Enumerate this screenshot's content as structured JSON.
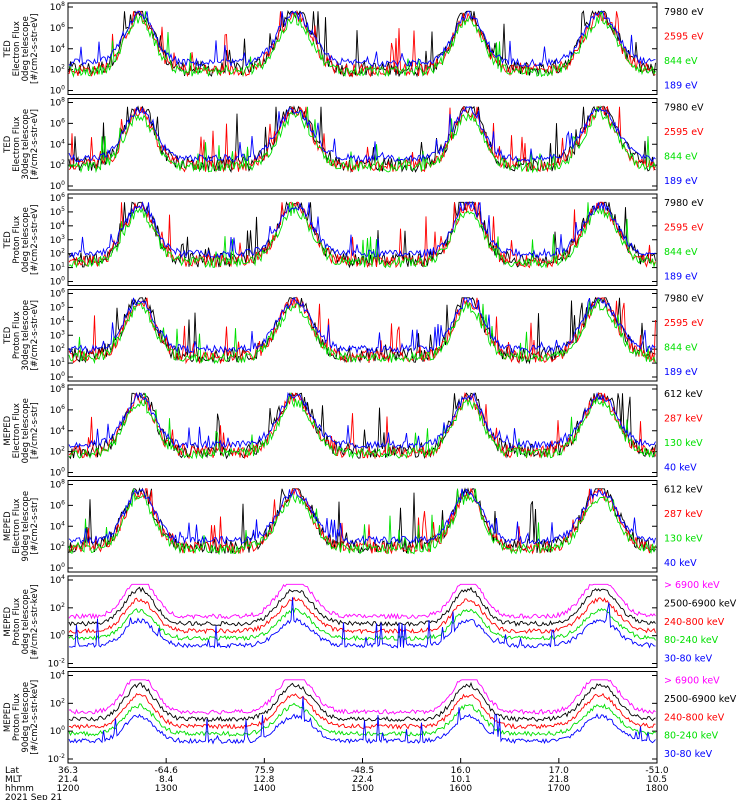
{
  "figure": {
    "date_label": "2021 Sep 21",
    "footer_row_labels": [
      "Lat",
      "MLT",
      "hhmm"
    ]
  },
  "chart_data": [
    {
      "type": "line",
      "ylabel": [
        "TED",
        "Electron Flux",
        "0deg telescope",
        "[#/cm2-s-str-eV]"
      ],
      "y_scale": "log",
      "yticks": [
        "10^8",
        "10^6",
        "10^4",
        "10^2",
        "10^0"
      ],
      "ylim": [
        1,
        100000000
      ],
      "series": [
        {
          "name": "7980 eV",
          "color": "#000000"
        },
        {
          "name": "2595 eV",
          "color": "#ff0000"
        },
        {
          "name": "844 eV",
          "color": "#00e000"
        },
        {
          "name": "189 eV",
          "color": "#0000ff"
        }
      ],
      "x_range": [
        "1200",
        "1800"
      ]
    },
    {
      "type": "line",
      "ylabel": [
        "TED",
        "Electron Flux",
        "30deg telescope",
        "[#/cm2-s-str-eV]"
      ],
      "y_scale": "log",
      "yticks": [
        "10^8",
        "10^6",
        "10^4",
        "10^2",
        "10^0"
      ],
      "ylim": [
        1,
        100000000
      ],
      "series": [
        {
          "name": "7980 eV",
          "color": "#000000"
        },
        {
          "name": "2595 eV",
          "color": "#ff0000"
        },
        {
          "name": "844 eV",
          "color": "#00e000"
        },
        {
          "name": "189 eV",
          "color": "#0000ff"
        }
      ],
      "x_range": [
        "1200",
        "1800"
      ]
    },
    {
      "type": "line",
      "ylabel": [
        "TED",
        "Proton Flux",
        "0deg telescope",
        "[#/cm2-s-str-eV]"
      ],
      "y_scale": "log",
      "yticks": [
        "10^6",
        "10^5",
        "10^4",
        "10^3",
        "10^2",
        "10^1",
        "10^0"
      ],
      "ylim": [
        1,
        1000000
      ],
      "series": [
        {
          "name": "7980 eV",
          "color": "#000000"
        },
        {
          "name": "2595 eV",
          "color": "#ff0000"
        },
        {
          "name": "844 eV",
          "color": "#00e000"
        },
        {
          "name": "189 eV",
          "color": "#0000ff"
        }
      ],
      "x_range": [
        "1200",
        "1800"
      ]
    },
    {
      "type": "line",
      "ylabel": [
        "TED",
        "Proton Flux",
        "30deg telescope",
        "[#/cm2-s-str-eV]"
      ],
      "y_scale": "log",
      "yticks": [
        "10^6",
        "10^5",
        "10^4",
        "10^3",
        "10^2",
        "10^1",
        "10^0"
      ],
      "ylim": [
        1,
        1000000
      ],
      "series": [
        {
          "name": "7980 eV",
          "color": "#000000"
        },
        {
          "name": "2595 eV",
          "color": "#ff0000"
        },
        {
          "name": "844 eV",
          "color": "#00e000"
        },
        {
          "name": "189 eV",
          "color": "#0000ff"
        }
      ],
      "x_range": [
        "1200",
        "1800"
      ]
    },
    {
      "type": "line",
      "ylabel": [
        "MEPED",
        "Electron Flux",
        "0deg telescope",
        "[#/cm2-s-str]"
      ],
      "y_scale": "log",
      "yticks": [
        "10^8",
        "10^6",
        "10^4",
        "10^2",
        "10^0"
      ],
      "ylim": [
        1,
        100000000
      ],
      "series": [
        {
          "name": "612 keV",
          "color": "#000000"
        },
        {
          "name": "287 keV",
          "color": "#ff0000"
        },
        {
          "name": "130 keV",
          "color": "#00e000"
        },
        {
          "name": "40 keV",
          "color": "#0000ff"
        }
      ],
      "x_range": [
        "1200",
        "1800"
      ]
    },
    {
      "type": "line",
      "ylabel": [
        "MEPED",
        "Electron Flux",
        "90deg telescope",
        "[#/cm2-s-str]"
      ],
      "y_scale": "log",
      "yticks": [
        "10^8",
        "10^6",
        "10^4",
        "10^2",
        "10^0"
      ],
      "ylim": [
        1,
        100000000
      ],
      "series": [
        {
          "name": "612 keV",
          "color": "#000000"
        },
        {
          "name": "287 keV",
          "color": "#ff0000"
        },
        {
          "name": "130 keV",
          "color": "#00e000"
        },
        {
          "name": "40 keV",
          "color": "#0000ff"
        }
      ],
      "x_range": [
        "1200",
        "1800"
      ]
    },
    {
      "type": "line",
      "ylabel": [
        "MEPED",
        "Proton Flux",
        "0deg telescope",
        "[#/cm2-s-str-keV]"
      ],
      "y_scale": "log",
      "yticks": [
        "10^4",
        "10^2",
        "10^0",
        "10^-2"
      ],
      "ylim": [
        0.01,
        100000
      ],
      "series": [
        {
          "name": "> 6900 keV",
          "color": "#ff00ff"
        },
        {
          "name": "2500-6900 keV",
          "color": "#000000"
        },
        {
          "name": "240-800 keV",
          "color": "#ff0000"
        },
        {
          "name": "80-240 keV",
          "color": "#00e000"
        },
        {
          "name": "30-80 keV",
          "color": "#0000ff"
        }
      ],
      "x_range": [
        "1200",
        "1800"
      ]
    },
    {
      "type": "line",
      "ylabel": [
        "MEPED",
        "Proton Flux",
        "90deg telescope",
        "[#/cm2-s-str-keV]"
      ],
      "y_scale": "log",
      "yticks": [
        "10^4",
        "10^2",
        "10^0",
        "10^-2"
      ],
      "ylim": [
        0.01,
        100000
      ],
      "series": [
        {
          "name": "> 6900 keV",
          "color": "#ff00ff"
        },
        {
          "name": "2500-6900 keV",
          "color": "#000000"
        },
        {
          "name": "240-800 keV",
          "color": "#ff0000"
        },
        {
          "name": "80-240 keV",
          "color": "#00e000"
        },
        {
          "name": "30-80 keV",
          "color": "#0000ff"
        }
      ],
      "x_range": [
        "1200",
        "1800"
      ]
    }
  ],
  "x_axis": {
    "lat": [
      "36.3",
      "-64.6",
      "75.9",
      "-48.5",
      "16.0",
      "17.0",
      "-51.0"
    ],
    "mlt": [
      "21.4",
      "8.4",
      "12.8",
      "22.4",
      "10.1",
      "21.8",
      "10.5"
    ],
    "hhmm": [
      "1200",
      "1300",
      "1400",
      "1500",
      "1600",
      "1700",
      "1800"
    ]
  }
}
